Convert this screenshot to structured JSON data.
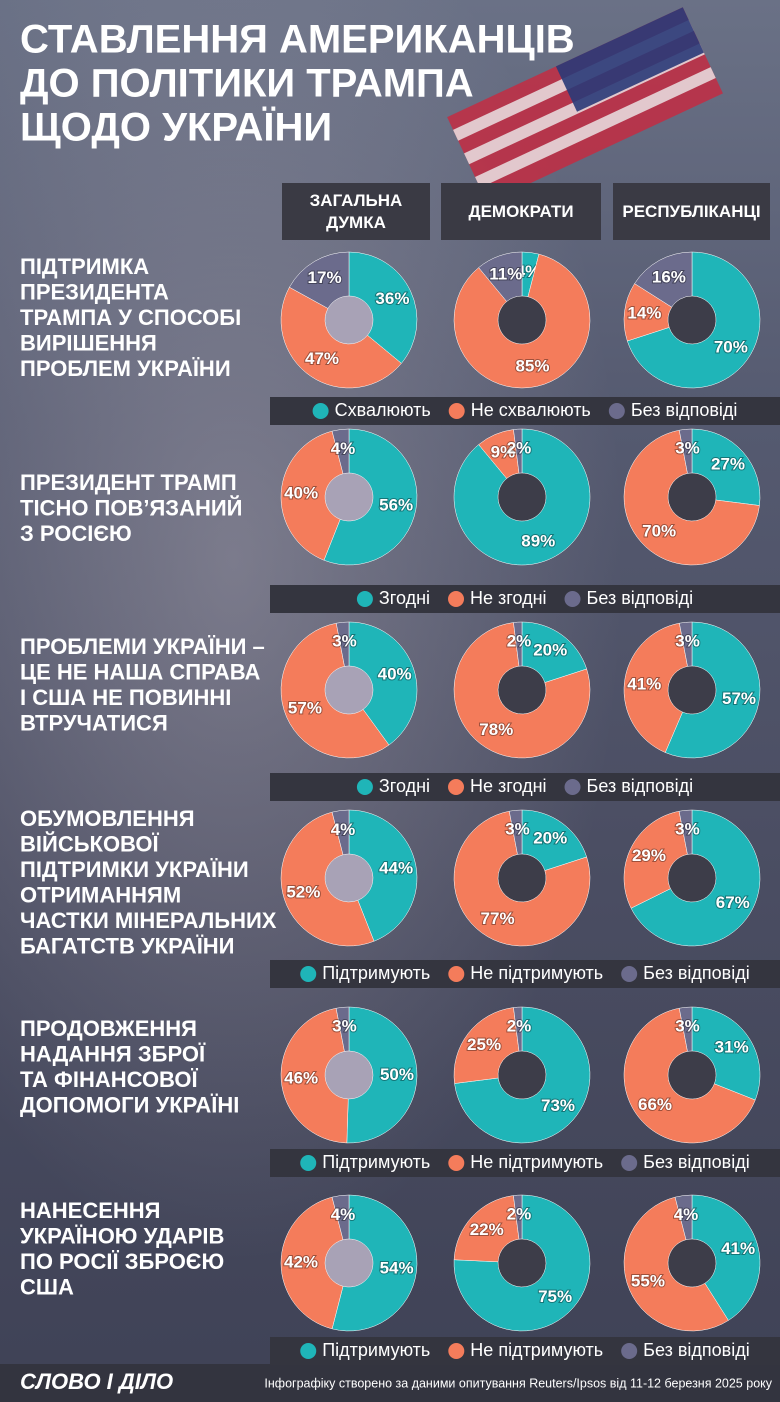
{
  "title": [
    "СТАВЛЕННЯ АМЕРИКАНЦІВ",
    "ДО ПОЛІТИКИ ТРАМПА",
    "ЩОДО УКРАЇНИ"
  ],
  "columns": [
    "ЗАГАЛЬНА ДУМКА",
    "ДЕМОКРАТИ",
    "РЕСПУБЛІКАНЦІ"
  ],
  "chart_data": [
    {
      "type": "donut",
      "question": [
        "ПІДТРИМКА",
        "ПРЕЗИДЕНТА",
        "ТРАМПА У СПОСОБІ",
        "ВИРІШЕННЯ",
        "ПРОБЛЕМ УКРАЇНИ"
      ],
      "categories": [
        "Схвалюють",
        "Не схвалюють",
        "Без відповіді"
      ],
      "colors": [
        "#1fb5b8",
        "#f47c5b",
        "#6b6b8c"
      ],
      "series": [
        {
          "values": [
            36,
            47,
            17
          ],
          "value_labels": [
            "36%",
            "47%",
            "17%"
          ]
        },
        {
          "values": [
            4,
            85,
            11
          ],
          "value_labels": [
            "4%",
            "85%",
            "11%"
          ]
        },
        {
          "values": [
            70,
            14,
            16
          ],
          "value_labels": [
            "70%",
            "14%",
            "16%"
          ]
        }
      ]
    },
    {
      "type": "donut",
      "question": [
        "ПРЕЗИДЕНТ ТРАМП",
        "ТІСНО ПОВ’ЯЗАНИЙ",
        "З РОСІЄЮ"
      ],
      "categories": [
        "Згодні",
        "Не згодні",
        "Без відповіді"
      ],
      "colors": [
        "#1fb5b8",
        "#f47c5b",
        "#6b6b8c"
      ],
      "series": [
        {
          "values": [
            56,
            40,
            4
          ],
          "value_labels": [
            "56%",
            "40%",
            "4%"
          ]
        },
        {
          "values": [
            89,
            9,
            2
          ],
          "value_labels": [
            "89%",
            "9%",
            "2%"
          ]
        },
        {
          "values": [
            27,
            70,
            3
          ],
          "value_labels": [
            "27%",
            "70%",
            "3%"
          ]
        }
      ]
    },
    {
      "type": "donut",
      "question": [
        "ПРОБЛЕМИ УКРАЇНИ –",
        "ЦЕ НЕ НАША СПРАВА",
        "І США НЕ ПОВИННІ",
        "ВТРУЧАТИСЯ"
      ],
      "categories": [
        "Згодні",
        "Не згодні",
        "Без відповіді"
      ],
      "colors": [
        "#1fb5b8",
        "#f47c5b",
        "#6b6b8c"
      ],
      "series": [
        {
          "values": [
            40,
            57,
            3
          ],
          "value_labels": [
            "40%",
            "57%",
            "3%"
          ]
        },
        {
          "values": [
            20,
            78,
            2
          ],
          "value_labels": [
            "20%",
            "78%",
            "2%"
          ]
        },
        {
          "values": [
            57,
            41,
            3
          ],
          "value_labels": [
            "57%",
            "41%",
            "3%"
          ]
        }
      ]
    },
    {
      "type": "donut",
      "question": [
        "ОБУМОВЛЕННЯ",
        "ВІЙСЬКОВОЇ",
        "ПІДТРИМКИ УКРАЇНИ",
        "ОТРИМАННЯМ",
        "ЧАСТКИ МІНЕРАЛЬНИХ",
        "БАГАТСТВ УКРАЇНИ"
      ],
      "categories": [
        "Підтримують",
        "Не підтримують",
        "Без відповіді"
      ],
      "colors": [
        "#1fb5b8",
        "#f47c5b",
        "#6b6b8c"
      ],
      "series": [
        {
          "values": [
            44,
            52,
            4
          ],
          "value_labels": [
            "44%",
            "52%",
            "4%"
          ]
        },
        {
          "values": [
            20,
            77,
            3
          ],
          "value_labels": [
            "20%",
            "77%",
            "3%"
          ]
        },
        {
          "values": [
            67,
            29,
            3
          ],
          "value_labels": [
            "67%",
            "29%",
            "3%"
          ]
        }
      ]
    },
    {
      "type": "donut",
      "question": [
        "ПРОДОВЖЕННЯ",
        "НАДАННЯ ЗБРОЇ",
        "ТА ФІНАНСОВОЇ",
        "ДОПОМОГИ УКРАЇНІ"
      ],
      "categories": [
        "Підтримують",
        "Не підтримують",
        "Без відповіді"
      ],
      "colors": [
        "#1fb5b8",
        "#f47c5b",
        "#6b6b8c"
      ],
      "series": [
        {
          "values": [
            50,
            46,
            3
          ],
          "value_labels": [
            "50%",
            "46%",
            "3%"
          ]
        },
        {
          "values": [
            73,
            25,
            2
          ],
          "value_labels": [
            "73%",
            "25%",
            "2%"
          ]
        },
        {
          "values": [
            31,
            66,
            3
          ],
          "value_labels": [
            "31%",
            "66%",
            "3%"
          ]
        }
      ]
    },
    {
      "type": "donut",
      "question": [
        "НАНЕСЕННЯ",
        "УКРАЇНОЮ УДАРІВ",
        "ПО РОСІЇ ЗБРОЄЮ",
        "США"
      ],
      "categories": [
        "Підтримують",
        "Не підтримують",
        "Без відповіді"
      ],
      "colors": [
        "#1fb5b8",
        "#f47c5b",
        "#6b6b8c"
      ],
      "series": [
        {
          "values": [
            54,
            42,
            4
          ],
          "value_labels": [
            "54%",
            "42%",
            "4%"
          ]
        },
        {
          "values": [
            75,
            22,
            2
          ],
          "value_labels": [
            "75%",
            "22%",
            "2%"
          ]
        },
        {
          "values": [
            41,
            55,
            4
          ],
          "value_labels": [
            "41%",
            "55%",
            "4%"
          ]
        }
      ]
    }
  ],
  "logo": "СЛОВО І ДІЛО",
  "source": "Інфографіку створено за даними опитування Reuters/Ipsos від 11-12 березня 2025 року"
}
